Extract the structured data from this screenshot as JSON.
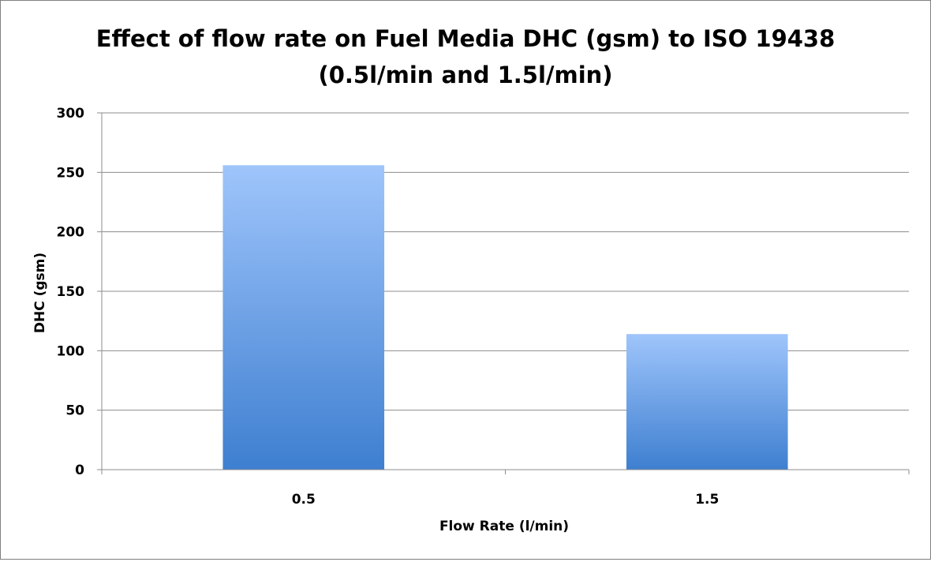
{
  "chart_data": {
    "type": "bar",
    "title_lines": [
      "Effect of flow rate on Fuel Media DHC (gsm) to ISO 19438",
      "(0.5l/min and 1.5l/min)"
    ],
    "xlabel": "Flow Rate (l/min)",
    "ylabel": "DHC (gsm)",
    "categories": [
      "0.5",
      "1.5"
    ],
    "values": [
      256,
      114
    ],
    "ylim": [
      0,
      300
    ],
    "yticks": [
      0,
      50,
      100,
      150,
      200,
      250,
      300
    ],
    "grid": true,
    "legend": "none",
    "bar_color_top": "#9fc5fb",
    "bar_color_bottom": "#3e7fd0",
    "grid_color": "#8c8c8c"
  }
}
